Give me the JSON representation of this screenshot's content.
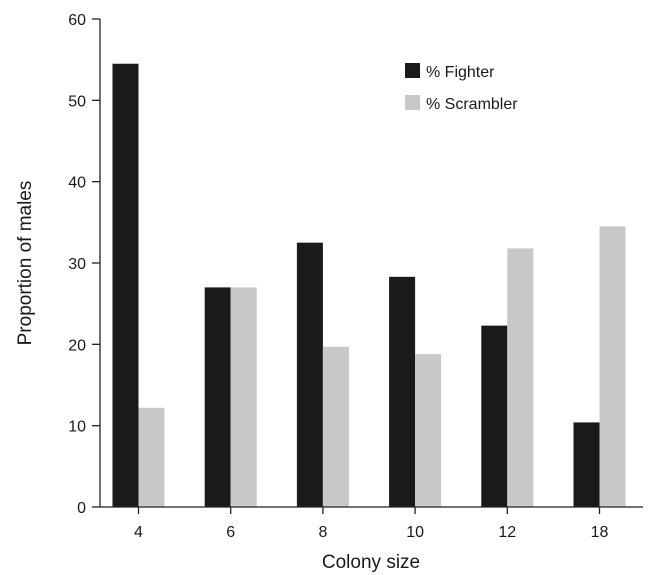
{
  "chart_data": {
    "type": "bar",
    "xlabel": "Colony size",
    "ylabel": "Proportion of males",
    "categories": [
      "4",
      "6",
      "8",
      "10",
      "12",
      "18"
    ],
    "ylim": [
      0,
      60
    ],
    "yticks": [
      0,
      10,
      20,
      30,
      40,
      50,
      60
    ],
    "grid": false,
    "legend_position": "top-right",
    "series": [
      {
        "name": "% Fighter",
        "color": "#1a1a1a",
        "values": [
          54.5,
          27,
          32.5,
          28.3,
          22.3,
          10.4
        ]
      },
      {
        "name": "% Scrambler",
        "color": "#c8c8c8",
        "values": [
          12.2,
          27,
          19.7,
          18.8,
          31.8,
          34.5
        ]
      }
    ]
  }
}
